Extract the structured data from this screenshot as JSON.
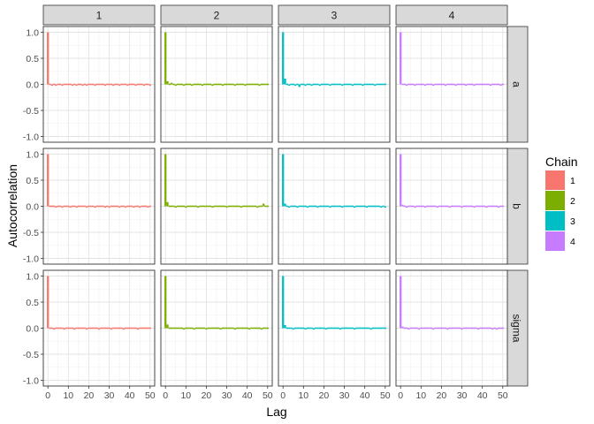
{
  "chart_data": {
    "type": "bar",
    "xlabel": "Lag",
    "ylabel": "Autocorrelation",
    "xlim": [
      0,
      50
    ],
    "ylim": [
      -1.0,
      1.0
    ],
    "x_ticks": [
      "0",
      "10",
      "20",
      "30",
      "40",
      "50"
    ],
    "x_minor_ticks": [
      "5",
      "15",
      "25",
      "35",
      "45"
    ],
    "y_ticks": [
      "-1.0",
      "-0.5",
      "0.0",
      "0.5",
      "1.0"
    ],
    "grid": true,
    "legend": {
      "title": "Chain",
      "placement": "right",
      "entries": [
        {
          "label": "1",
          "color": "#F8766D"
        },
        {
          "label": "2",
          "color": "#7CAE00"
        },
        {
          "label": "3",
          "color": "#00BFC4"
        },
        {
          "label": "4",
          "color": "#C77CFF"
        }
      ]
    },
    "facet_columns": [
      "1",
      "2",
      "3",
      "4"
    ],
    "facet_rows": [
      "a",
      "b",
      "sigma"
    ],
    "lags": [
      0,
      1,
      2,
      3,
      4,
      5,
      6,
      7,
      8,
      9,
      10,
      11,
      12,
      13,
      14,
      15,
      16,
      17,
      18,
      19,
      20,
      21,
      22,
      23,
      24,
      25,
      26,
      27,
      28,
      29,
      30,
      31,
      32,
      33,
      34,
      35,
      36,
      37,
      38,
      39,
      40,
      41,
      42,
      43,
      44,
      45,
      46,
      47,
      48,
      49,
      50
    ],
    "panels": [
      {
        "row": "a",
        "chain": "1",
        "values": [
          1.0,
          0.02,
          -0.01,
          0.01,
          -0.02,
          0.0,
          0.01,
          -0.01,
          0.0,
          0.0,
          0.0,
          0.01,
          -0.01,
          0.0,
          -0.02,
          0.0,
          0.01,
          -0.01,
          0.0,
          -0.01,
          0.0,
          0.0,
          0.01,
          -0.01,
          0.0,
          0.0,
          0.01,
          0.0,
          -0.01,
          0.0,
          0.01,
          0.0,
          -0.01,
          0.01,
          0.0,
          -0.01,
          0.0,
          0.01,
          0.0,
          -0.01,
          0.0,
          0.02,
          0.0,
          -0.01,
          0.0,
          0.01,
          0.0,
          -0.01,
          0.0,
          0.0,
          -0.01
        ]
      },
      {
        "row": "a",
        "chain": "2",
        "values": [
          1.0,
          0.06,
          0.01,
          0.03,
          0.0,
          -0.01,
          0.02,
          0.0,
          0.01,
          -0.01,
          0.0,
          0.01,
          0.0,
          -0.01,
          0.0,
          0.0,
          0.01,
          0.0,
          -0.01,
          0.0,
          0.01,
          0.0,
          0.0,
          -0.01,
          0.0,
          0.01,
          0.0,
          0.0,
          -0.01,
          0.0,
          0.0,
          0.01,
          0.0,
          0.0,
          -0.01,
          0.0,
          0.01,
          0.0,
          0.0,
          -0.01,
          0.0,
          0.0,
          0.01,
          0.0,
          0.0,
          0.0,
          -0.01,
          0.0,
          0.0,
          0.01,
          0.0
        ]
      },
      {
        "row": "a",
        "chain": "3",
        "values": [
          1.0,
          0.11,
          0.01,
          -0.02,
          0.01,
          0.0,
          -0.02,
          0.0,
          -0.05,
          0.01,
          0.0,
          -0.02,
          0.01,
          0.0,
          -0.01,
          0.01,
          0.0,
          0.0,
          -0.01,
          0.0,
          0.0,
          0.01,
          0.0,
          -0.01,
          0.0,
          0.01,
          0.0,
          0.0,
          0.0,
          -0.01,
          0.0,
          0.0,
          0.01,
          0.0,
          -0.01,
          0.0,
          0.02,
          0.0,
          0.0,
          -0.01,
          0.0,
          0.0,
          0.01,
          0.0,
          0.0,
          -0.01,
          0.0,
          0.0,
          0.0,
          0.0,
          0.0
        ]
      },
      {
        "row": "a",
        "chain": "4",
        "values": [
          1.0,
          0.02,
          0.0,
          -0.01,
          0.0,
          0.01,
          0.0,
          -0.01,
          0.0,
          0.01,
          0.0,
          0.0,
          -0.01,
          0.0,
          0.01,
          0.0,
          -0.02,
          0.0,
          0.01,
          0.0,
          0.0,
          0.0,
          -0.01,
          0.0,
          0.01,
          0.0,
          0.0,
          -0.01,
          0.0,
          0.02,
          0.0,
          0.0,
          -0.01,
          0.0,
          0.0,
          0.01,
          -0.01,
          0.0,
          0.0,
          0.0,
          0.0,
          0.02,
          0.0,
          0.0,
          -0.01,
          0.0,
          0.0,
          0.01,
          0.0,
          -0.01,
          0.0
        ]
      },
      {
        "row": "b",
        "chain": "1",
        "values": [
          1.0,
          0.02,
          0.0,
          0.01,
          -0.01,
          0.0,
          0.0,
          -0.01,
          0.0,
          0.01,
          0.0,
          -0.01,
          0.0,
          0.0,
          -0.01,
          0.0,
          0.0,
          0.01,
          0.0,
          -0.01,
          0.0,
          0.0,
          0.0,
          -0.01,
          0.0,
          0.01,
          0.0,
          0.0,
          -0.01,
          0.0,
          -0.02,
          0.0,
          0.0,
          0.01,
          0.0,
          -0.01,
          0.0,
          0.0,
          -0.01,
          0.0,
          0.0,
          0.0,
          -0.02,
          0.0,
          0.0,
          -0.01,
          0.0,
          0.0,
          0.0,
          -0.01,
          0.0
        ]
      },
      {
        "row": "b",
        "chain": "2",
        "values": [
          1.0,
          0.08,
          0.01,
          0.02,
          0.0,
          -0.01,
          0.0,
          0.01,
          0.0,
          0.0,
          -0.01,
          0.0,
          0.0,
          0.01,
          0.0,
          0.0,
          -0.01,
          0.0,
          0.0,
          0.0,
          0.01,
          0.0,
          0.0,
          -0.01,
          0.0,
          0.0,
          0.01,
          0.0,
          0.0,
          0.0,
          -0.01,
          0.0,
          0.0,
          0.01,
          0.0,
          0.0,
          0.0,
          -0.01,
          0.0,
          0.0,
          0.01,
          0.0,
          0.0,
          0.0,
          0.0,
          -0.01,
          0.0,
          0.0,
          0.05,
          0.0,
          0.0
        ]
      },
      {
        "row": "b",
        "chain": "3",
        "values": [
          1.0,
          0.05,
          0.0,
          -0.01,
          0.0,
          0.01,
          0.0,
          -0.02,
          0.0,
          0.0,
          0.01,
          0.0,
          -0.01,
          0.0,
          0.0,
          0.01,
          0.0,
          -0.01,
          0.0,
          0.0,
          0.0,
          0.01,
          0.0,
          -0.01,
          0.0,
          0.0,
          0.0,
          0.01,
          0.0,
          -0.02,
          0.0,
          0.0,
          0.01,
          0.0,
          0.0,
          -0.01,
          0.0,
          0.0,
          0.0,
          0.01,
          0.0,
          -0.01,
          0.0,
          0.0,
          0.0,
          0.0,
          0.01,
          0.0,
          -0.01,
          0.0,
          -0.02
        ]
      },
      {
        "row": "b",
        "chain": "4",
        "values": [
          1.0,
          0.03,
          0.0,
          -0.01,
          0.01,
          0.0,
          0.0,
          -0.01,
          0.0,
          0.01,
          0.0,
          0.0,
          -0.01,
          0.0,
          0.0,
          0.01,
          0.0,
          0.0,
          -0.01,
          0.0,
          0.0,
          0.0,
          0.01,
          0.0,
          -0.01,
          0.0,
          0.0,
          0.0,
          0.01,
          0.0,
          -0.01,
          0.0,
          0.0,
          0.01,
          0.0,
          0.0,
          -0.01,
          0.0,
          0.0,
          0.0,
          0.01,
          0.0,
          -0.01,
          0.0,
          0.0,
          0.01,
          0.0,
          0.0,
          -0.01,
          0.0,
          0.0
        ]
      },
      {
        "row": "sigma",
        "chain": "1",
        "values": [
          1.0,
          0.01,
          0.0,
          -0.01,
          0.0,
          0.01,
          0.0,
          0.0,
          -0.01,
          0.0,
          0.01,
          0.0,
          0.0,
          -0.01,
          0.0,
          0.0,
          0.01,
          0.0,
          0.0,
          -0.01,
          0.0,
          0.0,
          0.01,
          0.0,
          0.0,
          -0.01,
          0.0,
          0.01,
          0.0,
          0.0,
          0.0,
          -0.01,
          0.0,
          0.0,
          0.01,
          0.0,
          0.0,
          -0.01,
          0.0,
          0.0,
          0.0,
          0.01,
          0.0,
          0.0,
          -0.01,
          0.0,
          0.0,
          0.0,
          0.01,
          0.0,
          0.0
        ]
      },
      {
        "row": "sigma",
        "chain": "2",
        "values": [
          1.0,
          0.07,
          0.02,
          0.01,
          0.0,
          0.02,
          0.0,
          0.01,
          0.0,
          -0.01,
          0.0,
          0.01,
          0.0,
          0.0,
          -0.01,
          0.0,
          0.01,
          0.0,
          0.0,
          0.0,
          -0.01,
          0.0,
          0.0,
          0.01,
          0.0,
          0.0,
          0.0,
          -0.01,
          0.0,
          0.0,
          0.01,
          0.0,
          0.0,
          0.0,
          -0.01,
          0.0,
          0.0,
          0.01,
          0.0,
          0.0,
          0.0,
          -0.01,
          0.0,
          0.0,
          0.0,
          0.01,
          0.0,
          -0.02,
          0.0,
          0.0,
          0.0
        ]
      },
      {
        "row": "sigma",
        "chain": "3",
        "values": [
          1.0,
          0.06,
          0.0,
          0.01,
          0.0,
          -0.01,
          0.0,
          0.0,
          0.01,
          0.0,
          0.0,
          -0.01,
          0.0,
          0.0,
          0.0,
          -0.02,
          0.0,
          0.0,
          0.01,
          0.0,
          0.0,
          -0.01,
          0.0,
          0.0,
          0.0,
          0.01,
          0.0,
          0.0,
          -0.01,
          0.0,
          0.0,
          0.0,
          0.01,
          0.0,
          0.0,
          -0.01,
          0.0,
          0.0,
          0.0,
          0.01,
          0.0,
          0.0,
          0.0,
          -0.01,
          0.0,
          0.0,
          0.0,
          0.01,
          0.0,
          0.0,
          0.0
        ]
      },
      {
        "row": "sigma",
        "chain": "4",
        "values": [
          1.0,
          0.03,
          0.0,
          0.0,
          -0.01,
          0.0,
          0.01,
          0.0,
          0.0,
          -0.01,
          0.0,
          0.0,
          0.01,
          0.0,
          0.0,
          0.0,
          -0.01,
          0.0,
          0.0,
          0.0,
          0.01,
          0.0,
          0.0,
          -0.01,
          0.0,
          0.0,
          0.0,
          0.01,
          0.0,
          0.0,
          -0.01,
          0.0,
          0.0,
          0.0,
          0.01,
          0.0,
          0.0,
          0.0,
          -0.01,
          0.0,
          0.0,
          0.0,
          0.01,
          0.0,
          0.0,
          -0.01,
          0.0,
          -0.02,
          0.0,
          0.01,
          0.0
        ]
      }
    ]
  }
}
